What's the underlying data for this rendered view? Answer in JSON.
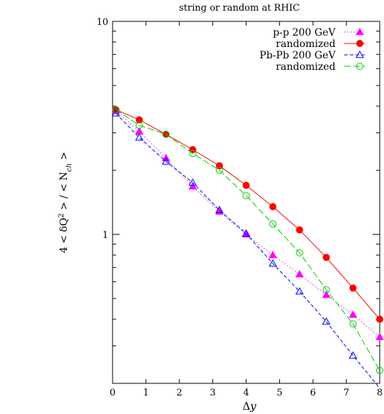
{
  "chart_data": {
    "type": "line",
    "title": "string or random at RHIC",
    "xlabel": "Δy",
    "ylabel": "4 < δQ² > / < N_ch >",
    "ylabel_parts": {
      "main": "4 < δQ",
      "sup": "2",
      "mid": " > / < N",
      "sub": "ch",
      "end": " >"
    },
    "xlabel_parts": {
      "main": "Δ",
      "var": "y"
    },
    "xlim": [
      0,
      8
    ],
    "ylim": [
      0.2,
      10
    ],
    "yscale": "log",
    "grid": false,
    "legend_position": "top-right",
    "x_ticks": [
      "0",
      "1",
      "2",
      "3",
      "4",
      "5",
      "6",
      "7",
      "8"
    ],
    "y_ticks": [
      {
        "value": 1,
        "label": "1"
      },
      {
        "value": 10,
        "label": "10"
      }
    ],
    "series": [
      {
        "name": "p-p 200 GeV",
        "color": "#ff00ff",
        "marker": "triangle-filled",
        "dash": "1.5,3",
        "x": [
          0.1,
          0.8,
          1.6,
          2.4,
          3.2,
          4.0,
          4.8,
          5.6,
          6.4,
          7.2,
          8.0
        ],
        "y": [
          3.8,
          3.05,
          2.28,
          1.68,
          1.28,
          1.0,
          0.8,
          0.65,
          0.52,
          0.42,
          0.33
        ]
      },
      {
        "name": "randomized",
        "color": "#ff0000",
        "marker": "circle-filled",
        "dash": "",
        "x": [
          0.1,
          0.8,
          1.6,
          2.4,
          3.2,
          4.0,
          4.8,
          5.6,
          6.4,
          7.2,
          8.0
        ],
        "y": [
          3.85,
          3.45,
          2.95,
          2.5,
          2.1,
          1.7,
          1.35,
          1.05,
          0.78,
          0.56,
          0.4
        ]
      },
      {
        "name": "Pb-Pb 200 GeV",
        "color": "#0000ff",
        "marker": "triangle-open",
        "dash": "5,3",
        "x": [
          0.1,
          0.8,
          1.6,
          2.4,
          3.2,
          4.0,
          4.8,
          5.6,
          6.4,
          7.2,
          8.0
        ],
        "y": [
          3.7,
          2.85,
          2.2,
          1.75,
          1.3,
          1.01,
          0.73,
          0.54,
          0.39,
          0.27,
          0.19
        ]
      },
      {
        "name": "randomized",
        "color": "#00cc00",
        "marker": "circle-open",
        "dash": "9,4",
        "x": [
          0.1,
          0.8,
          1.6,
          2.4,
          3.2,
          4.0,
          4.8,
          5.6,
          6.4,
          7.2,
          8.0
        ],
        "y": [
          3.85,
          3.25,
          2.95,
          2.4,
          2.0,
          1.52,
          1.12,
          0.82,
          0.55,
          0.38,
          0.23
        ]
      }
    ]
  }
}
